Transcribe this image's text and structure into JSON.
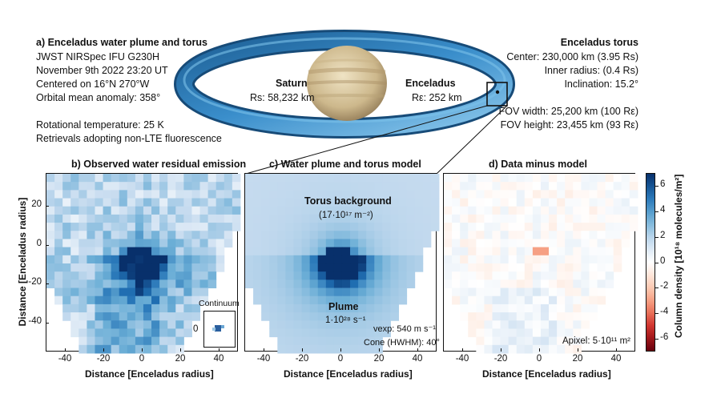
{
  "header_left": {
    "title": "a) Enceladus water plume and torus",
    "lines": [
      "JWST NIRSpec IFU G230H",
      "November 9th 2022 23:20 UT",
      "Centered on 16°N 270°W",
      "Orbital mean anomaly: 358°"
    ],
    "lines2": [
      "Rotational temperature: 25 K",
      "Retrievals adopting non-LTE fluorescence"
    ]
  },
  "header_right": {
    "title": "Enceladus torus",
    "lines": [
      "Center: 230,000 km (3.95 Rs)",
      "Inner radius: (0.4 Rs)",
      "Inclination: 15.2°"
    ],
    "lines2": [
      "FOV width: 25,200 km (100 Rε)",
      "FOV height: 23,455 km (93 Rε)"
    ]
  },
  "scene": {
    "saturn_name": "Saturn",
    "saturn_radius": "Rs: 58,232 km",
    "enceladus_name": "Enceladus",
    "enceladus_radius": "Rε: 252 km",
    "colors": {
      "torus": "#2f7fbf",
      "saturn": "#d9c9a6"
    }
  },
  "chart_data": [
    {
      "type": "heatmap",
      "title": "b) Observed water residual emission",
      "xlabel": "Distance [Enceladus radius]",
      "ylabel": "Distance [Enceladus radius]",
      "xlim": [
        -50,
        50
      ],
      "ylim": [
        -55,
        37
      ],
      "xticks": [
        -40,
        -20,
        0,
        20,
        40
      ],
      "yticks": [
        20,
        0,
        -20,
        -40
      ],
      "inset_label": "Continuum",
      "inset_tick": "0"
    },
    {
      "type": "heatmap",
      "title": "c) Water plume and torus model",
      "xlabel": "Distance [Enceladus radius]",
      "xlim": [
        -50,
        50
      ],
      "xticks": [
        -40,
        -20,
        0,
        20,
        40
      ],
      "annotations": {
        "torus_title": "Torus background",
        "torus_value": "(17·10¹⁷ m⁻²)",
        "plume_title": "Plume",
        "plume_value": "1·10²⁸ s⁻¹",
        "vexp": "vexp: 540 m s⁻¹",
        "cone": "Cone (HWHM): 40°"
      }
    },
    {
      "type": "heatmap",
      "title": "d) Data minus model",
      "xlabel": "Distance [Enceladus radius]",
      "xlim": [
        -50,
        50
      ],
      "xticks": [
        -40,
        -20,
        0,
        20,
        40
      ],
      "annotation": "Apixel: 5·10¹¹ m²"
    }
  ],
  "colorbar": {
    "label": "Column density [10¹⁸ molecules/m²]",
    "ticks": [
      "6",
      "4",
      "2",
      "0",
      "-2",
      "-4",
      "-6"
    ],
    "range": [
      -7,
      7
    ]
  }
}
